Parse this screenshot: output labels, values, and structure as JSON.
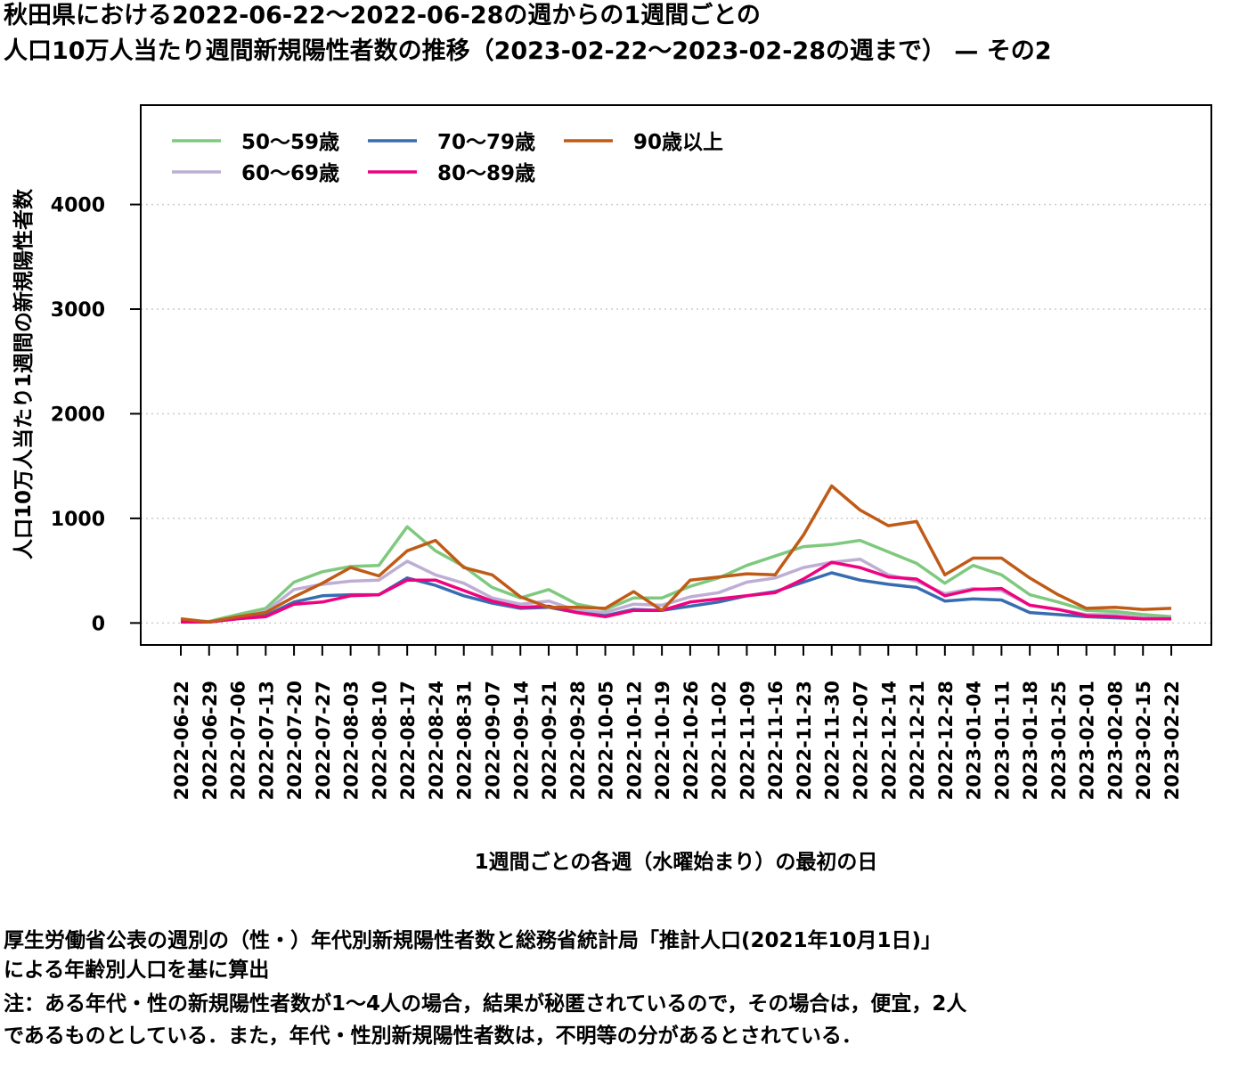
{
  "title": {
    "line1": "秋田県における2022-06-22～2022-06-28の週からの1週間ごとの",
    "line2": "人口10万人当たり週間新規陽性者数の推移（2023-02-22～2023-02-28の週まで） — その2"
  },
  "notes": {
    "line1": "厚生労働省公表の週別の（性・）年代別新規陽性者数と総務省統計局「推計人口(2021年10月1日)」",
    "line2": "による年齢別人口を基に算出",
    "line3": "注：ある年代・性の新規陽性者数が1～4人の場合，結果が秘匿されているので，その場合は，便宜，2人",
    "line4": "であるものとしている．また，年代・性別新規陽性者数は，不明等の分があるとされている．"
  },
  "chart_data": {
    "type": "line",
    "xlabel": "1週間ごとの各週（水曜始まり）の最初の日",
    "ylabel": "人口10万人当たり1週間の新規陽性者数",
    "ylim": [
      -210,
      4950
    ],
    "yticks": [
      0,
      1000,
      2000,
      3000,
      4000
    ],
    "grid": "horizontal-dotted",
    "legend_position": "top-left",
    "categories": [
      "2022-06-22",
      "2022-06-29",
      "2022-07-06",
      "2022-07-13",
      "2022-07-20",
      "2022-07-27",
      "2022-08-03",
      "2022-08-10",
      "2022-08-17",
      "2022-08-24",
      "2022-08-31",
      "2022-09-07",
      "2022-09-14",
      "2022-09-21",
      "2022-09-28",
      "2022-10-05",
      "2022-10-12",
      "2022-10-19",
      "2022-10-26",
      "2022-11-02",
      "2022-11-09",
      "2022-11-16",
      "2022-11-23",
      "2022-11-30",
      "2022-12-07",
      "2022-12-14",
      "2022-12-21",
      "2022-12-28",
      "2023-01-04",
      "2023-01-11",
      "2023-01-18",
      "2023-01-25",
      "2023-02-01",
      "2023-02-08",
      "2023-02-15",
      "2023-02-22"
    ],
    "series": [
      {
        "name": "50～59歳",
        "color": "#7fc97f",
        "values": [
          20,
          15,
          80,
          140,
          390,
          490,
          540,
          550,
          920,
          690,
          540,
          340,
          240,
          320,
          180,
          130,
          240,
          240,
          350,
          430,
          550,
          640,
          730,
          750,
          790,
          680,
          570,
          380,
          550,
          460,
          270,
          200,
          120,
          110,
          80,
          60
        ]
      },
      {
        "name": "60～69歳",
        "color": "#beaed4",
        "values": [
          20,
          10,
          50,
          110,
          320,
          370,
          400,
          410,
          590,
          460,
          380,
          240,
          180,
          210,
          120,
          100,
          180,
          170,
          250,
          290,
          390,
          430,
          530,
          580,
          610,
          460,
          400,
          280,
          330,
          310,
          170,
          130,
          80,
          80,
          50,
          40
        ]
      },
      {
        "name": "70～79歳",
        "color": "#386cb0",
        "values": [
          20,
          10,
          40,
          70,
          200,
          260,
          270,
          270,
          430,
          360,
          260,
          190,
          140,
          150,
          100,
          70,
          130,
          120,
          160,
          200,
          260,
          300,
          390,
          480,
          410,
          370,
          340,
          210,
          230,
          220,
          100,
          80,
          60,
          50,
          40,
          40
        ]
      },
      {
        "name": "80～89歳",
        "color": "#f0027f",
        "values": [
          10,
          10,
          40,
          60,
          180,
          200,
          260,
          270,
          410,
          410,
          310,
          210,
          150,
          160,
          100,
          60,
          120,
          120,
          200,
          230,
          260,
          290,
          420,
          580,
          530,
          440,
          420,
          260,
          320,
          330,
          170,
          130,
          70,
          60,
          40,
          40
        ]
      },
      {
        "name": "90歳以上",
        "color": "#bf5b17",
        "values": [
          40,
          10,
          60,
          100,
          250,
          380,
          530,
          450,
          690,
          790,
          530,
          460,
          250,
          150,
          150,
          140,
          300,
          120,
          410,
          440,
          470,
          460,
          840,
          1310,
          1080,
          930,
          970,
          460,
          620,
          620,
          430,
          270,
          140,
          150,
          130,
          140
        ]
      }
    ]
  }
}
